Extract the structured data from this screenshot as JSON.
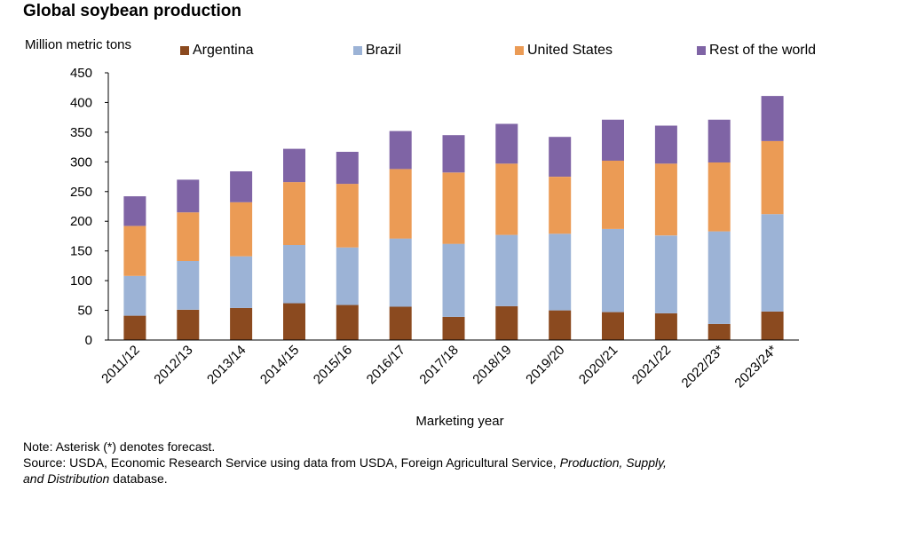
{
  "chart_data": {
    "type": "bar",
    "stacked": true,
    "title": "Global soybean production",
    "ylabel": "Million metric tons",
    "xlabel": "Marketing year",
    "ylim": [
      0,
      450
    ],
    "yticks": [
      0,
      50,
      100,
      150,
      200,
      250,
      300,
      350,
      400,
      450
    ],
    "categories": [
      "2011/12",
      "2012/13",
      "2013/14",
      "2014/15",
      "2015/16",
      "2016/17",
      "2017/18",
      "2018/19",
      "2019/20",
      "2020/21",
      "2021/22",
      "2022/23*",
      "2023/24*"
    ],
    "series": [
      {
        "name": "Argentina",
        "color": "#8B4A1F",
        "values": [
          41,
          51,
          54,
          62,
          59,
          56,
          39,
          57,
          50,
          47,
          45,
          27,
          48
        ]
      },
      {
        "name": "Brazil",
        "color": "#9CB3D6",
        "values": [
          67,
          82,
          87,
          98,
          97,
          115,
          123,
          120,
          129,
          140,
          131,
          156,
          164
        ]
      },
      {
        "name": "United States",
        "color": "#EB9B55",
        "values": [
          84,
          82,
          91,
          106,
          107,
          117,
          120,
          120,
          96,
          115,
          121,
          116,
          123
        ]
      },
      {
        "name": "Rest of the world",
        "color": "#7F64A5",
        "values": [
          50,
          55,
          52,
          56,
          54,
          64,
          63,
          67,
          67,
          69,
          64,
          72,
          76
        ]
      }
    ]
  },
  "notes": {
    "note": "Note: Asterisk (*) denotes forecast.",
    "source_prefix": "Source: USDA, Economic Research Service using data from USDA, Foreign Agricultural Service, ",
    "source_italic1": "Production, Supply,",
    "source_italic2": "and Distribution",
    "source_suffix": " database."
  }
}
